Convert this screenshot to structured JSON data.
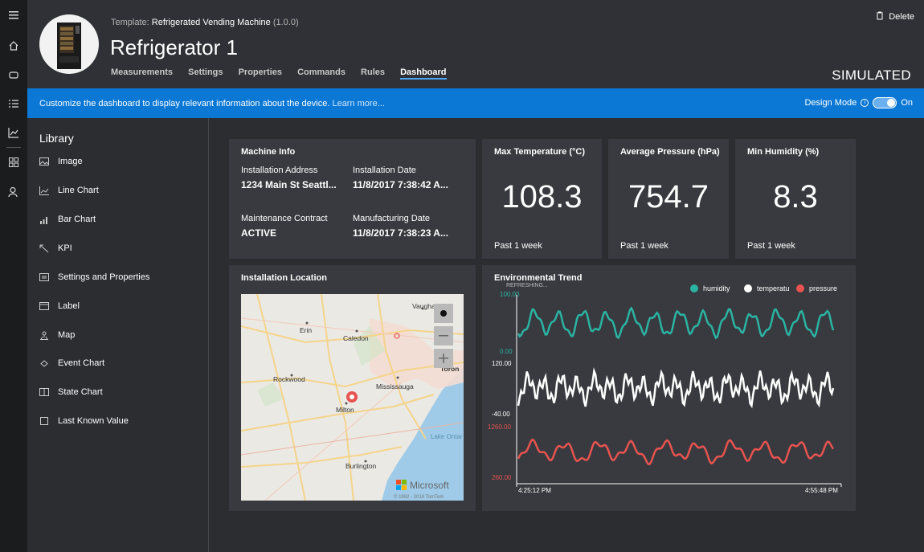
{
  "rail": {
    "icons": [
      "hamburger-icon",
      "home-icon",
      "device-icon",
      "rules-icon",
      "analytics-icon",
      "dashboard-grid-icon",
      "user-icon"
    ]
  },
  "header": {
    "template_prefix": "Template:",
    "template_name": "Refrigerated Vending Machine",
    "template_version": "(1.0.0)",
    "device_name": "Refrigerator 1",
    "tabs": [
      "Measurements",
      "Settings",
      "Properties",
      "Commands",
      "Rules",
      "Dashboard"
    ],
    "active_tab": "Dashboard",
    "delete_label": "Delete",
    "status": "SIMULATED"
  },
  "banner": {
    "message": "Customize the dashboard to display relevant information about the device.",
    "link": "Learn more...",
    "design_mode_label": "Design Mode",
    "toggle_state": "On",
    "accent": "#0b78d6"
  },
  "library": {
    "title": "Library",
    "items": [
      "Image",
      "Line Chart",
      "Bar Chart",
      "KPI",
      "Settings and Properties",
      "Label",
      "Map",
      "Event Chart",
      "State Chart",
      "Last Known Value"
    ]
  },
  "machine_info": {
    "title": "Machine Info",
    "installation_address_label": "Installation Address",
    "installation_address": "1234 Main St Seattl...",
    "installation_date_label": "Installation Date",
    "installation_date": "11/8/2017 7:38:42 A...",
    "maintenance_label": "Maintenance Contract",
    "maintenance": "ACTIVE",
    "manufacturing_date_label": "Manufacturing Date",
    "manufacturing_date": "11/8/2017 7:38:23 A..."
  },
  "kpis": [
    {
      "title": "Max Temperature (°C)",
      "value": "108.3",
      "period": "Past 1 week"
    },
    {
      "title": "Average Pressure (hPa)",
      "value": "754.7",
      "period": "Past 1 week"
    },
    {
      "title": "Min Humidity (%)",
      "value": "8.3",
      "period": "Past 1 week"
    }
  ],
  "location": {
    "title": "Installation Location",
    "places": [
      "Vaughan",
      "Erin",
      "Caledon",
      "Toron",
      "Rockwood",
      "Mississauga",
      "Milton",
      "Lake Ontar",
      "Burlington"
    ],
    "logo": "Microsoft",
    "copyright": "© 1992 - 2018 TomTom"
  },
  "trend": {
    "title": "Environmental Trend",
    "refreshing": "REFRESHING...",
    "legend": [
      {
        "name": "humidity",
        "color": "#2bb3a3"
      },
      {
        "name": "temperatu",
        "color": "#ffffff"
      },
      {
        "name": "pressure",
        "color": "#e8534f"
      }
    ],
    "axes": {
      "humidity": {
        "max": "100.00",
        "min": "0.00"
      },
      "temperature": {
        "max": "120.00",
        "min": "-40.00"
      },
      "pressure": {
        "max": "1260.00",
        "min": "260.00"
      }
    },
    "x_start": "4:25:12 PM",
    "x_end": "4:55:48 PM"
  }
}
